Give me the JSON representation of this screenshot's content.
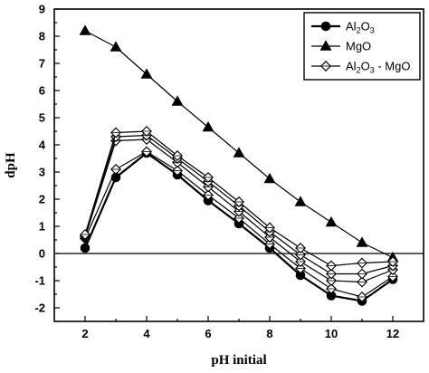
{
  "chart_data": {
    "type": "line",
    "xlabel": "pH initial",
    "ylabel": "dpH",
    "xlim": [
      1,
      13
    ],
    "ylim": [
      -2.5,
      9
    ],
    "x_ticks": [
      2,
      4,
      6,
      8,
      10,
      12
    ],
    "y_ticks": [
      -2,
      -1,
      0,
      1,
      2,
      3,
      4,
      5,
      6,
      7,
      8,
      9
    ],
    "zero_reference_line": true,
    "legend": {
      "placement": "top-right",
      "entries": [
        {
          "name": "Al2O3",
          "label_main": "Al",
          "sub1": "2",
          "label_mid": "O",
          "sub2": "3",
          "label_tail": "",
          "marker": "filled-circle"
        },
        {
          "name": "MgO",
          "label_main": "MgO",
          "sub1": "",
          "label_mid": "",
          "sub2": "",
          "label_tail": "",
          "marker": "filled-triangle"
        },
        {
          "name": "Al2O3 - MgO",
          "label_main": "Al",
          "sub1": "2",
          "label_mid": "O",
          "sub2": "3",
          "label_tail": " - MgO",
          "marker": "open-diamond"
        }
      ]
    },
    "series": [
      {
        "name": "Al2O3",
        "marker": "filled-circle",
        "x": [
          2,
          3,
          4,
          5,
          6,
          7,
          8,
          9,
          10,
          11,
          12
        ],
        "y": [
          0.2,
          2.8,
          3.7,
          2.9,
          1.95,
          1.1,
          0.2,
          -0.8,
          -1.55,
          -1.75,
          -0.95
        ]
      },
      {
        "name": "MgO",
        "marker": "filled-triangle",
        "x": [
          2,
          3,
          4,
          5,
          6,
          7,
          8,
          9,
          10,
          11,
          12
        ],
        "y": [
          8.2,
          7.6,
          6.6,
          5.6,
          4.65,
          3.7,
          2.75,
          1.9,
          1.15,
          0.4,
          -0.15
        ]
      },
      {
        "name": "Al2O3 - MgO (a)",
        "marker": "open-diamond",
        "x": [
          2,
          3,
          4,
          5,
          6,
          7,
          8,
          9,
          10,
          11,
          12
        ],
        "y": [
          0.55,
          3.1,
          3.75,
          3.05,
          2.15,
          1.3,
          0.35,
          -0.55,
          -1.3,
          -1.6,
          -0.85
        ]
      },
      {
        "name": "Al2O3 - MgO (b)",
        "marker": "open-diamond",
        "x": [
          2,
          3,
          4,
          5,
          6,
          7,
          8,
          9,
          10,
          11,
          12
        ],
        "y": [
          0.6,
          4.15,
          4.2,
          3.35,
          2.45,
          1.55,
          0.6,
          -0.3,
          -1.0,
          -1.05,
          -0.6
        ]
      },
      {
        "name": "Al2O3 - MgO (c)",
        "marker": "open-diamond",
        "x": [
          2,
          3,
          4,
          5,
          6,
          7,
          8,
          9,
          10,
          11,
          12
        ],
        "y": [
          0.65,
          4.3,
          4.35,
          3.5,
          2.65,
          1.75,
          0.8,
          -0.05,
          -0.75,
          -0.75,
          -0.45
        ]
      },
      {
        "name": "Al2O3 - MgO (d)",
        "marker": "open-diamond",
        "x": [
          2,
          3,
          4,
          5,
          6,
          7,
          8,
          9,
          10,
          11,
          12
        ],
        "y": [
          0.7,
          4.45,
          4.5,
          3.6,
          2.8,
          1.9,
          0.95,
          0.2,
          -0.45,
          -0.35,
          -0.3
        ]
      }
    ]
  }
}
